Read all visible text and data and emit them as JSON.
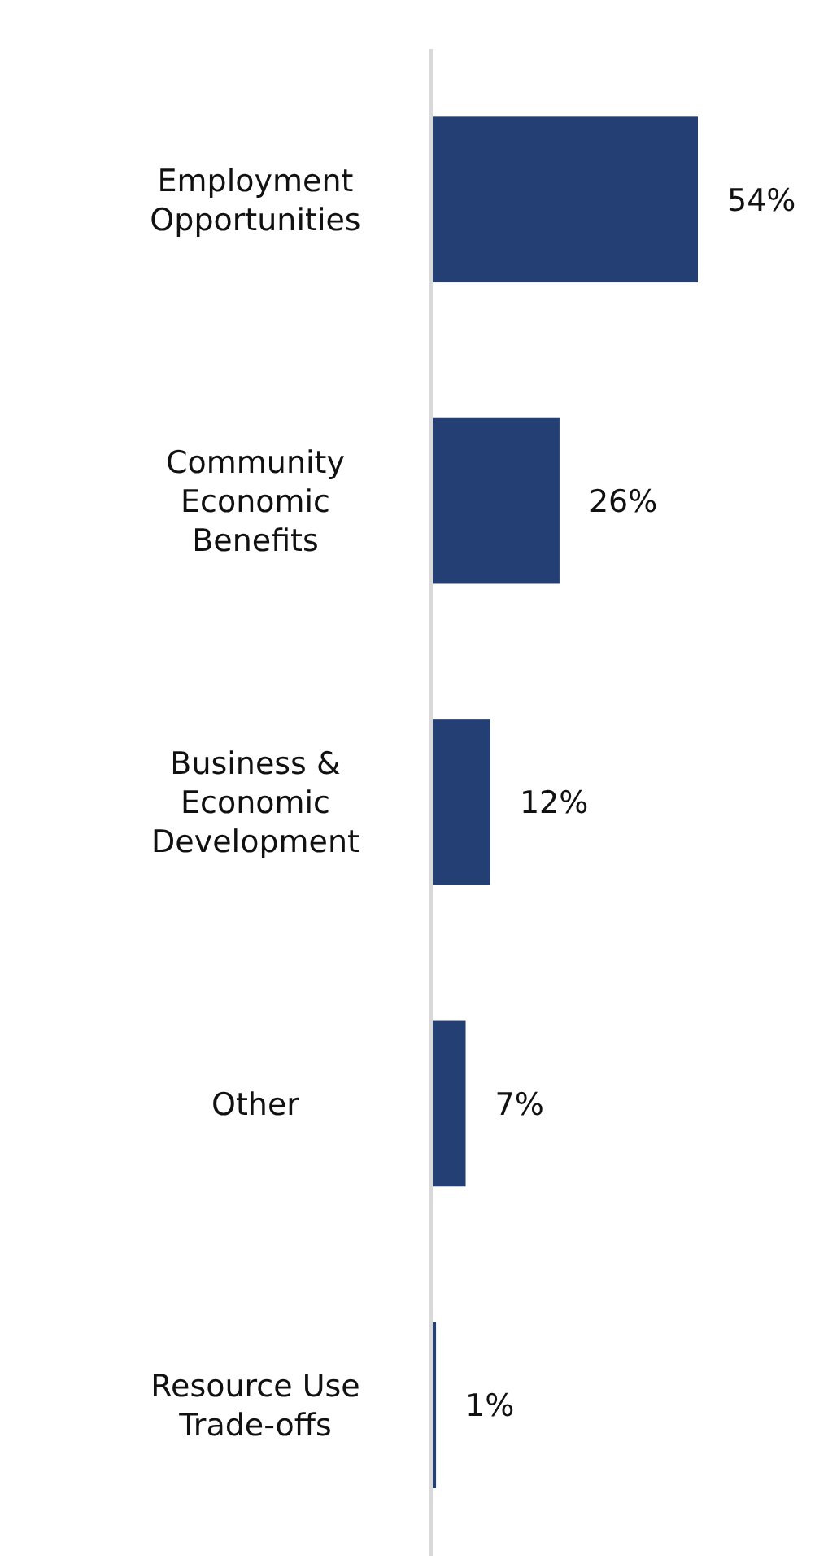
{
  "chart_data": {
    "type": "bar",
    "orientation": "horizontal",
    "categories": [
      "Employment Opportunities",
      "Community Economic Benefits",
      "Business & Economic Development",
      "Other",
      "Resource Use Trade-offs"
    ],
    "values": [
      54,
      26,
      12,
      7,
      1
    ],
    "value_labels": [
      "54%",
      "26%",
      "12%",
      "7%",
      "1%"
    ],
    "color": "#243f73"
  }
}
